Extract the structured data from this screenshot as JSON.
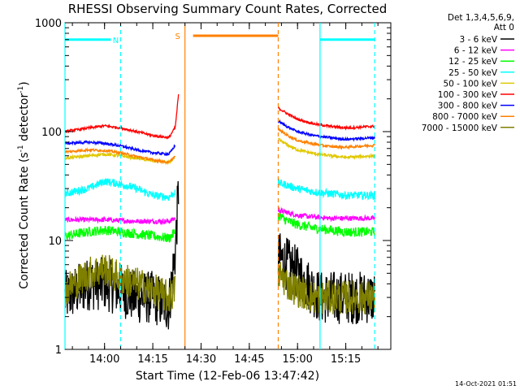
{
  "chart_data": {
    "type": "line",
    "title": "RHESSI Observing Summary Count Rates, Corrected",
    "xlabel": "Start Time (12-Feb-06 13:47:42)",
    "ylabel_main": "Corrected Count Rate (s",
    "ylabel_sup1": "-1",
    "ylabel_mid": " detector",
    "ylabel_sup2": "-1",
    "ylabel_end": ")",
    "footer": "14-Oct-2021 01:51",
    "y_scale": "log",
    "ylim": [
      1,
      1000
    ],
    "xlim": [
      "13:47:42",
      "15:29"
    ],
    "grid": false,
    "x_ticks": [
      {
        "label": "14:00",
        "value": "14:00"
      },
      {
        "label": "14:15",
        "value": "14:15"
      },
      {
        "label": "14:30",
        "value": "14:30"
      },
      {
        "label": "14:45",
        "value": "14:45"
      },
      {
        "label": "15:00",
        "value": "15:00"
      },
      {
        "label": "15:15",
        "value": "15:15"
      }
    ],
    "y_ticks": [
      {
        "label": "1",
        "value": 1
      },
      {
        "label": "10",
        "value": 10
      },
      {
        "label": "100",
        "value": 100
      },
      {
        "label": "1000",
        "value": 1000
      }
    ],
    "legend": {
      "placement": "right",
      "header": [
        "Det 1,3,4,5,6,9,",
        "Att 0"
      ],
      "entries": [
        {
          "label": "3 - 6 keV",
          "color": "#000000"
        },
        {
          "label": "6 - 12 keV",
          "color": "#ff00ff"
        },
        {
          "label": "12 - 25 keV",
          "color": "#00ff00"
        },
        {
          "label": "25 - 50 keV",
          "color": "#00ffff"
        },
        {
          "label": "50 - 100 keV",
          "color": "#e0c800"
        },
        {
          "label": "100 - 300 keV",
          "color": "#ff0000"
        },
        {
          "label": "300 - 800 keV",
          "color": "#0000ff"
        },
        {
          "label": "800 - 7000 keV",
          "color": "#ff8000"
        },
        {
          "label": "7000 - 15000 keV",
          "color": "#808000"
        }
      ]
    },
    "annotations": [
      {
        "type": "bar",
        "label": "N",
        "color": "#00ffff",
        "x_start": "13:47:42",
        "x_end": "14:05",
        "y": 700
      },
      {
        "type": "bar",
        "label": "",
        "color": "#00ffff",
        "x_start": "15:07",
        "x_end": "15:24",
        "y": 700
      },
      {
        "type": "bar",
        "label": "S",
        "color": "#ff8000",
        "x_start": "14:25",
        "x_end": "14:54",
        "y": 760
      }
    ],
    "vertical_lines": [
      {
        "x": "13:47:42",
        "color": "#00ffff",
        "style": "solid"
      },
      {
        "x": "14:05",
        "color": "#00ffff",
        "style": "dashed"
      },
      {
        "x": "15:07",
        "color": "#00ffff",
        "style": "solid"
      },
      {
        "x": "15:24",
        "color": "#00ffff",
        "style": "dashed"
      },
      {
        "x": "14:25",
        "color": "#ff8000",
        "style": "solid"
      },
      {
        "x": "14:54",
        "color": "#ff8000",
        "style": "dashed"
      }
    ],
    "series": [
      {
        "name": "3 - 6 keV",
        "color": "#000000",
        "noise": 0.55,
        "segments": [
          {
            "x": [
              "13:47:42",
              "13:55",
              "14:00",
              "14:05",
              "14:10",
              "14:15",
              "14:20",
              "14:22",
              "14:23"
            ],
            "y": [
              3,
              4,
              4,
              3.5,
              3,
              3,
              2.5,
              8,
              30
            ]
          },
          {
            "x": [
              "14:54",
              "14:57",
              "15:00",
              "15:03",
              "15:07",
              "15:12",
              "15:17",
              "15:24"
            ],
            "y": [
              7,
              6,
              5,
              4,
              3,
              3,
              3,
              3
            ]
          }
        ]
      },
      {
        "name": "6 - 12 keV",
        "color": "#ff00ff",
        "noise": 0.05,
        "segments": [
          {
            "x": [
              "13:47:42",
              "14:00",
              "14:10",
              "14:20",
              "14:22"
            ],
            "y": [
              15.5,
              15.5,
              15,
              15,
              16
            ]
          },
          {
            "x": [
              "14:54",
              "14:57",
              "15:00",
              "15:05",
              "15:10",
              "15:15",
              "15:24"
            ],
            "y": [
              19,
              18,
              17,
              16.5,
              16,
              16,
              16
            ]
          }
        ]
      },
      {
        "name": "12 - 25 keV",
        "color": "#00ff00",
        "noise": 0.1,
        "segments": [
          {
            "x": [
              "13:47:42",
              "13:55",
              "14:00",
              "14:05",
              "14:10",
              "14:15",
              "14:20",
              "14:22"
            ],
            "y": [
              11,
              12,
              12.5,
              12,
              11.5,
              11,
              10.5,
              12
            ]
          },
          {
            "x": [
              "14:54",
              "14:57",
              "15:00",
              "15:05",
              "15:10",
              "15:15",
              "15:24"
            ],
            "y": [
              17,
              15,
              14,
              13,
              12.5,
              12,
              12
            ]
          }
        ]
      },
      {
        "name": "25 - 50 keV",
        "color": "#00ffff",
        "noise": 0.08,
        "segments": [
          {
            "x": [
              "13:47:42",
              "13:55",
              "14:00",
              "14:05",
              "14:10",
              "14:15",
              "14:20",
              "14:22"
            ],
            "y": [
              27,
              30,
              35,
              33,
              30,
              26,
              25,
              28
            ]
          },
          {
            "x": [
              "14:54",
              "14:57",
              "15:00",
              "15:05",
              "15:10",
              "15:15",
              "15:24"
            ],
            "y": [
              34,
              32,
              30,
              28,
              27,
              26,
              26
            ]
          }
        ]
      },
      {
        "name": "50 - 100 keV",
        "color": "#e0c800",
        "noise": 0.03,
        "segments": [
          {
            "x": [
              "13:47:42",
              "13:55",
              "14:00",
              "14:05",
              "14:10",
              "14:15",
              "14:20",
              "14:22"
            ],
            "y": [
              57,
              60,
              62,
              60,
              57,
              54,
              52,
              58
            ]
          },
          {
            "x": [
              "14:54",
              "14:57",
              "15:00",
              "15:05",
              "15:10",
              "15:15",
              "15:24"
            ],
            "y": [
              85,
              75,
              68,
              63,
              60,
              58,
              60
            ]
          }
        ]
      },
      {
        "name": "100 - 300 keV",
        "color": "#ff0000",
        "noise": 0.025,
        "segments": [
          {
            "x": [
              "13:47:42",
              "13:55",
              "14:00",
              "14:05",
              "14:10",
              "14:15",
              "14:20",
              "14:22",
              "14:23"
            ],
            "y": [
              100,
              108,
              113,
              108,
              100,
              92,
              88,
              110,
              220
            ]
          },
          {
            "x": [
              "14:54",
              "14:57",
              "15:00",
              "15:05",
              "15:10",
              "15:15",
              "15:24"
            ],
            "y": [
              165,
              145,
              130,
              118,
              112,
              108,
              112
            ]
          }
        ]
      },
      {
        "name": "300 - 800 keV",
        "color": "#0000ff",
        "noise": 0.025,
        "segments": [
          {
            "x": [
              "13:47:42",
              "13:55",
              "14:00",
              "14:05",
              "14:10",
              "14:15",
              "14:20",
              "14:22"
            ],
            "y": [
              78,
              80,
              78,
              74,
              68,
              64,
              62,
              75
            ]
          },
          {
            "x": [
              "14:54",
              "14:57",
              "15:00",
              "15:05",
              "15:10",
              "15:15",
              "15:24"
            ],
            "y": [
              125,
              110,
              100,
              92,
              88,
              85,
              88
            ]
          }
        ]
      },
      {
        "name": "800 - 7000 keV",
        "color": "#ff8000",
        "noise": 0.025,
        "segments": [
          {
            "x": [
              "13:47:42",
              "13:55",
              "14:00",
              "14:05",
              "14:10",
              "14:15",
              "14:20",
              "14:22"
            ],
            "y": [
              65,
              68,
              67,
              64,
              59,
              55,
              52,
              60
            ]
          },
          {
            "x": [
              "14:54",
              "14:57",
              "15:00",
              "15:05",
              "15:10",
              "15:15",
              "15:24"
            ],
            "y": [
              105,
              92,
              83,
              77,
              73,
              72,
              75
            ]
          }
        ]
      },
      {
        "name": "7000 - 15000 keV",
        "color": "#808000",
        "noise": 0.35,
        "segments": [
          {
            "x": [
              "13:47:42",
              "13:55",
              "14:00",
              "14:05",
              "14:10",
              "14:15",
              "14:20",
              "14:22"
            ],
            "y": [
              3.5,
              5,
              5.5,
              4.5,
              4,
              3.5,
              3,
              3.5
            ]
          },
          {
            "x": [
              "14:54",
              "14:57",
              "15:00",
              "15:05",
              "15:10",
              "15:15",
              "15:24"
            ],
            "y": [
              5,
              4,
              3.5,
              3,
              3,
              3,
              3
            ]
          }
        ]
      }
    ]
  }
}
